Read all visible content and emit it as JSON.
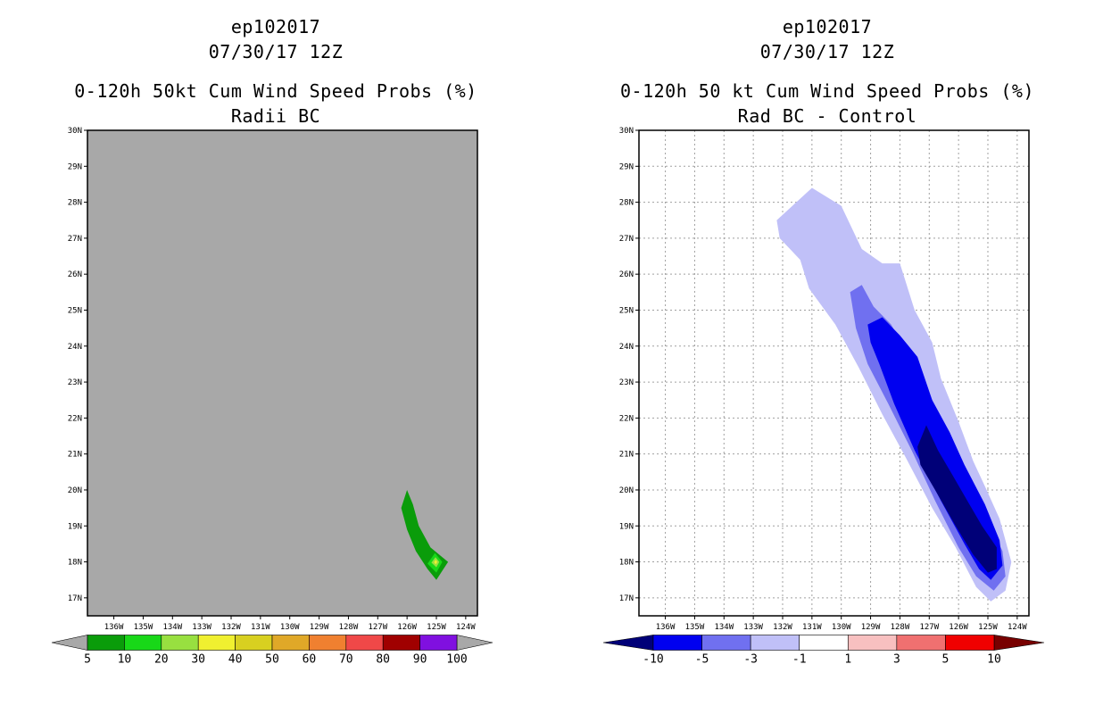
{
  "chart_data": [
    {
      "type": "heatmap",
      "title": {
        "storm": "ep102017",
        "datetime": "07/30/17 12Z",
        "main": "0-120h 50kt Cum Wind Speed Probs (%)",
        "subtitle": "Radii BC"
      },
      "xaxis": {
        "range": [
          -136.9,
          -123.6
        ],
        "ticks": [
          -136,
          -135,
          -134,
          -133,
          -132,
          -131,
          -130,
          -129,
          -128,
          -127,
          -126,
          -125,
          -124
        ],
        "tick_labels": [
          "136W",
          "135W",
          "134W",
          "133W",
          "132W",
          "131W",
          "130W",
          "129W",
          "128W",
          "127W",
          "126W",
          "125W",
          "124W"
        ]
      },
      "yaxis": {
        "range": [
          16.5,
          30
        ],
        "ticks": [
          17,
          18,
          19,
          20,
          21,
          22,
          23,
          24,
          25,
          26,
          27,
          28,
          29,
          30
        ],
        "tick_labels": [
          "17N",
          "18N",
          "19N",
          "20N",
          "21N",
          "22N",
          "23N",
          "24N",
          "25N",
          "26N",
          "27N",
          "28N",
          "29N",
          "30N"
        ]
      },
      "grid": false,
      "background_color": "#a8a8a8",
      "colorbar": {
        "labels": [
          "5",
          "10",
          "20",
          "30",
          "40",
          "50",
          "60",
          "70",
          "80",
          "90",
          "100"
        ],
        "colors": [
          "#0a9c0a",
          "#18d818",
          "#98e040",
          "#f0f030",
          "#d8d020",
          "#e0a828",
          "#f08030",
          "#f04848",
          "#a00000",
          "#8010e0"
        ],
        "end_colors": [
          "#a8a8a8",
          "#a8a8a8"
        ]
      },
      "contours": [
        {
          "level": "5-10",
          "color": "#0a9c0a",
          "polygon": [
            [
              -126.2,
              19.5
            ],
            [
              -126.0,
              20.0
            ],
            [
              -125.8,
              19.6
            ],
            [
              -125.6,
              19.0
            ],
            [
              -125.2,
              18.4
            ],
            [
              -124.6,
              18.0
            ],
            [
              -125.0,
              17.5
            ],
            [
              -125.3,
              17.8
            ],
            [
              -125.7,
              18.3
            ],
            [
              -126.0,
              18.9
            ]
          ]
        },
        {
          "level": "10-20",
          "color": "#18d818",
          "polygon": [
            [
              -124.8,
              18.0
            ],
            [
              -125.0,
              17.7
            ],
            [
              -125.3,
              17.95
            ],
            [
              -125.05,
              18.25
            ]
          ]
        },
        {
          "level": "20-30",
          "color": "#98e040",
          "polygon": [
            [
              -124.9,
              18.0
            ],
            [
              -125.0,
              17.85
            ],
            [
              -125.17,
              17.98
            ],
            [
              -125.03,
              18.13
            ]
          ]
        },
        {
          "level": "30-40",
          "color": "#f0f030",
          "polygon": [
            [
              -124.97,
              18.0
            ],
            [
              -125.02,
              17.93
            ],
            [
              -125.08,
              17.99
            ],
            [
              -125.02,
              18.06
            ]
          ]
        }
      ]
    },
    {
      "type": "heatmap",
      "title": {
        "storm": "ep102017",
        "datetime": "07/30/17 12Z",
        "main": "0-120h 50 kt Cum Wind Speed Probs (%)",
        "subtitle": "Rad BC - Control"
      },
      "xaxis": {
        "range": [
          -136.9,
          -123.6
        ],
        "ticks": [
          -136,
          -135,
          -134,
          -133,
          -132,
          -131,
          -130,
          -129,
          -128,
          -127,
          -126,
          -125,
          -124
        ],
        "tick_labels": [
          "136W",
          "135W",
          "134W",
          "133W",
          "132W",
          "131W",
          "130W",
          "129W",
          "128W",
          "127W",
          "126W",
          "125W",
          "124W"
        ]
      },
      "yaxis": {
        "range": [
          16.5,
          30
        ],
        "ticks": [
          17,
          18,
          19,
          20,
          21,
          22,
          23,
          24,
          25,
          26,
          27,
          28,
          29,
          30
        ],
        "tick_labels": [
          "17N",
          "18N",
          "19N",
          "20N",
          "21N",
          "22N",
          "23N",
          "24N",
          "25N",
          "26N",
          "27N",
          "28N",
          "29N",
          "30N"
        ]
      },
      "grid": true,
      "background_color": "#ffffff",
      "colorbar": {
        "labels": [
          "-10",
          "-5",
          "-3",
          "-1",
          "1",
          "3",
          "5",
          "10"
        ],
        "colors": [
          "#0000f0",
          "#7070f0",
          "#c0c0f8",
          "#ffffff",
          "#f8c0c0",
          "#f07070",
          "#f00000"
        ],
        "end_colors": [
          "#000078",
          "#780000"
        ]
      },
      "contours": [
        {
          "level": "-3 to -1",
          "color": "#c0c0f8",
          "polygon": [
            [
              -132.2,
              27.5
            ],
            [
              -131.0,
              28.4
            ],
            [
              -130.0,
              27.9
            ],
            [
              -129.3,
              26.7
            ],
            [
              -128.6,
              26.3
            ],
            [
              -128.0,
              26.3
            ],
            [
              -127.5,
              25.0
            ],
            [
              -126.9,
              24.1
            ],
            [
              -126.6,
              23.1
            ],
            [
              -126.0,
              21.9
            ],
            [
              -125.5,
              20.8
            ],
            [
              -125.1,
              20.1
            ],
            [
              -124.6,
              19.2
            ],
            [
              -124.2,
              18.0
            ],
            [
              -124.4,
              17.2
            ],
            [
              -124.9,
              16.9
            ],
            [
              -125.4,
              17.3
            ],
            [
              -126.1,
              18.4
            ],
            [
              -126.9,
              19.5
            ],
            [
              -127.8,
              20.9
            ],
            [
              -128.6,
              22.1
            ],
            [
              -129.4,
              23.4
            ],
            [
              -130.2,
              24.6
            ],
            [
              -131.1,
              25.6
            ],
            [
              -131.4,
              26.4
            ],
            [
              -132.1,
              27.0
            ]
          ]
        },
        {
          "level": "-5 to -3",
          "color": "#7070f0",
          "polygon": [
            [
              -129.7,
              25.5
            ],
            [
              -129.3,
              25.7
            ],
            [
              -128.9,
              25.1
            ],
            [
              -128.3,
              24.6
            ],
            [
              -127.6,
              23.6
            ],
            [
              -127.0,
              22.6
            ],
            [
              -126.4,
              21.4
            ],
            [
              -125.8,
              20.5
            ],
            [
              -125.2,
              19.5
            ],
            [
              -124.5,
              18.3
            ],
            [
              -124.4,
              17.6
            ],
            [
              -124.8,
              17.2
            ],
            [
              -125.4,
              17.6
            ],
            [
              -126.0,
              18.4
            ],
            [
              -126.8,
              19.7
            ],
            [
              -127.6,
              21.1
            ],
            [
              -128.4,
              22.4
            ],
            [
              -129.1,
              23.5
            ],
            [
              -129.5,
              24.5
            ]
          ]
        },
        {
          "level": "-10 to -5",
          "color": "#0000f0",
          "polygon": [
            [
              -129.1,
              24.6
            ],
            [
              -128.6,
              24.8
            ],
            [
              -128.0,
              24.3
            ],
            [
              -127.4,
              23.7
            ],
            [
              -126.9,
              22.5
            ],
            [
              -126.3,
              21.6
            ],
            [
              -125.8,
              20.7
            ],
            [
              -125.1,
              19.6
            ],
            [
              -124.6,
              18.6
            ],
            [
              -124.5,
              17.9
            ],
            [
              -124.9,
              17.5
            ],
            [
              -125.3,
              17.8
            ],
            [
              -125.8,
              18.5
            ],
            [
              -126.6,
              19.7
            ],
            [
              -127.5,
              21.1
            ],
            [
              -128.2,
              22.4
            ],
            [
              -128.7,
              23.5
            ],
            [
              -129.0,
              24.1
            ]
          ]
        },
        {
          "level": "< -10",
          "color": "#000078",
          "polygon": [
            [
              -127.4,
              21.2
            ],
            [
              -127.1,
              21.8
            ],
            [
              -126.7,
              21.1
            ],
            [
              -126.2,
              20.4
            ],
            [
              -125.7,
              19.7
            ],
            [
              -125.2,
              19.0
            ],
            [
              -124.7,
              18.4
            ],
            [
              -124.7,
              17.8
            ],
            [
              -125.0,
              17.7
            ],
            [
              -125.5,
              18.2
            ],
            [
              -126.1,
              19.0
            ],
            [
              -126.8,
              20.0
            ],
            [
              -127.3,
              20.7
            ]
          ]
        }
      ]
    }
  ]
}
